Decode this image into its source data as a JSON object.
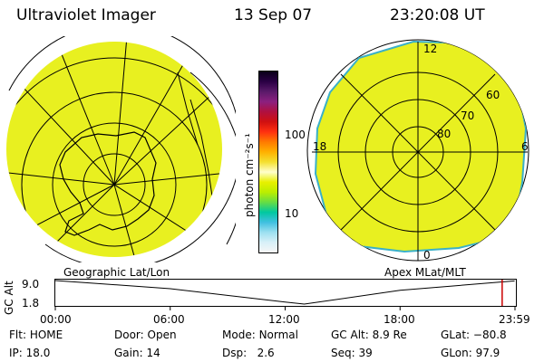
{
  "header": {
    "instrument": "Ultraviolet Imager",
    "date": "13 Sep 07",
    "time": "23:20:08 UT"
  },
  "colorbar": {
    "unit_label": "photon cm⁻²s⁻¹",
    "ticks": [
      "100",
      "10"
    ],
    "colors": [
      "#0a0018",
      "#2a0044",
      "#5a1a6a",
      "#8b2080",
      "#b01040",
      "#d01010",
      "#ff3010",
      "#ff7a00",
      "#ffb000",
      "#f4e030",
      "#ffffcc",
      "#e8f000",
      "#bbee00",
      "#66dd44",
      "#00c8a0",
      "#40c0e0",
      "#9ce0f0",
      "#d8f0f8",
      "#f6f6f6"
    ]
  },
  "left_panel": {
    "caption": "Geographic Lat/Lon",
    "fill_color": "#e8f020"
  },
  "right_panel": {
    "caption": "Apex MLat/MLT",
    "fill_color": "#e8f020",
    "mlt_labels": {
      "top": "12",
      "bottom": "0",
      "left": "18",
      "right": "6"
    },
    "lat_labels": [
      "60",
      "70",
      "80"
    ]
  },
  "altitude_plot": {
    "axis_label": "GC Alt",
    "y_ticks": [
      "9.0",
      "1.8"
    ],
    "x_ticks": [
      "00:00",
      "06:00",
      "12:00",
      "18:00",
      "23:59"
    ],
    "curve": {
      "x_hours": [
        0,
        6,
        12,
        13,
        18,
        23.98
      ],
      "alt_re": [
        9.0,
        6.5,
        2.4,
        1.8,
        6.0,
        8.9
      ]
    },
    "marker_hour": 23.33,
    "marker_color": "#cc0000"
  },
  "status": {
    "flt_label": "Flt:",
    "flt_value": "HOME",
    "ip_label": "IP:",
    "ip_value": "18.0",
    "door_label": "Door:",
    "door_value": "Open",
    "gain_label": "Gain:",
    "gain_value": "14",
    "mode_label": "Mode:",
    "mode_value": "Normal",
    "dsp_label": "Dsp:",
    "dsp_value": "2.6",
    "gcalt_label": "GC Alt:",
    "gcalt_value": "8.9 Re",
    "seq_label": "Seq:",
    "seq_value": "39",
    "glat_label": "GLat:",
    "glat_value": "−80.8",
    "glon_label": "GLon:",
    "glon_value": "97.9"
  }
}
